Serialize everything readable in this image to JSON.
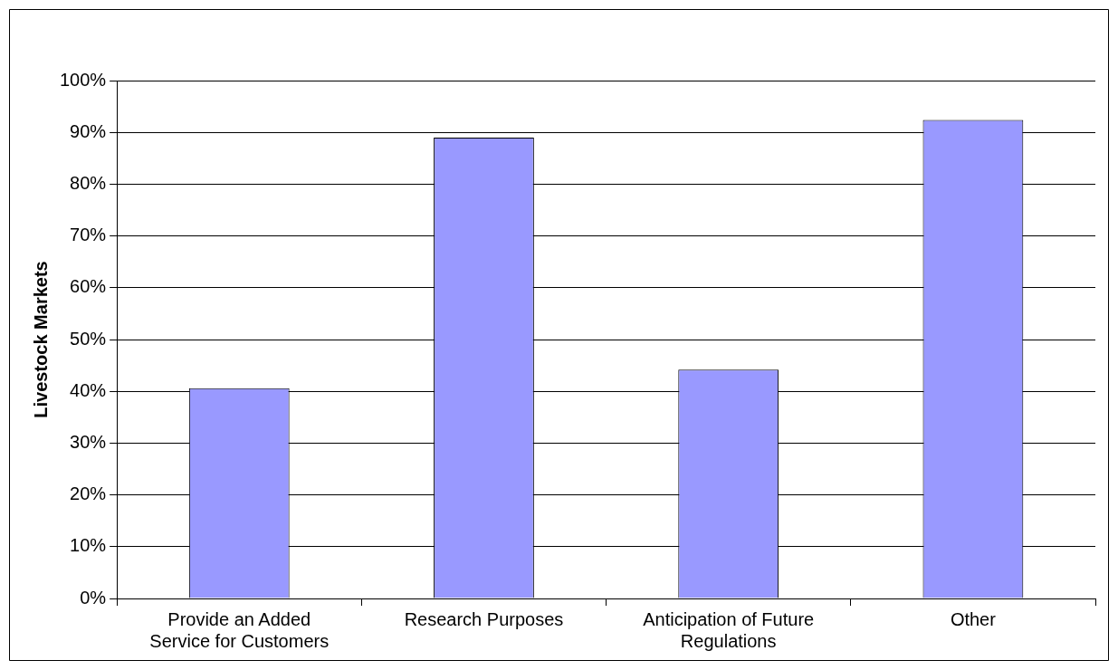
{
  "chart_data": {
    "type": "bar",
    "ylabel": "Livestock Markets",
    "categories": [
      "Provide an Added Service for Customers",
      "Research Purposes",
      "Anticipation of Future Regulations",
      "Other"
    ],
    "values": [
      40.6,
      89.0,
      44.2,
      92.4
    ],
    "color": "#9999ff",
    "ylim": [
      0,
      100
    ],
    "yticks": [
      {
        "value": 0,
        "label": "0%"
      },
      {
        "value": 10,
        "label": "10%"
      },
      {
        "value": 20,
        "label": "20%"
      },
      {
        "value": 30,
        "label": "30%"
      },
      {
        "value": 40,
        "label": "40%"
      },
      {
        "value": 50,
        "label": "50%"
      },
      {
        "value": 60,
        "label": "60%"
      },
      {
        "value": 70,
        "label": "70%"
      },
      {
        "value": 80,
        "label": "80%"
      },
      {
        "value": 90,
        "label": "90%"
      },
      {
        "value": 100,
        "label": "100%"
      }
    ],
    "grid": "y",
    "legend": false
  }
}
